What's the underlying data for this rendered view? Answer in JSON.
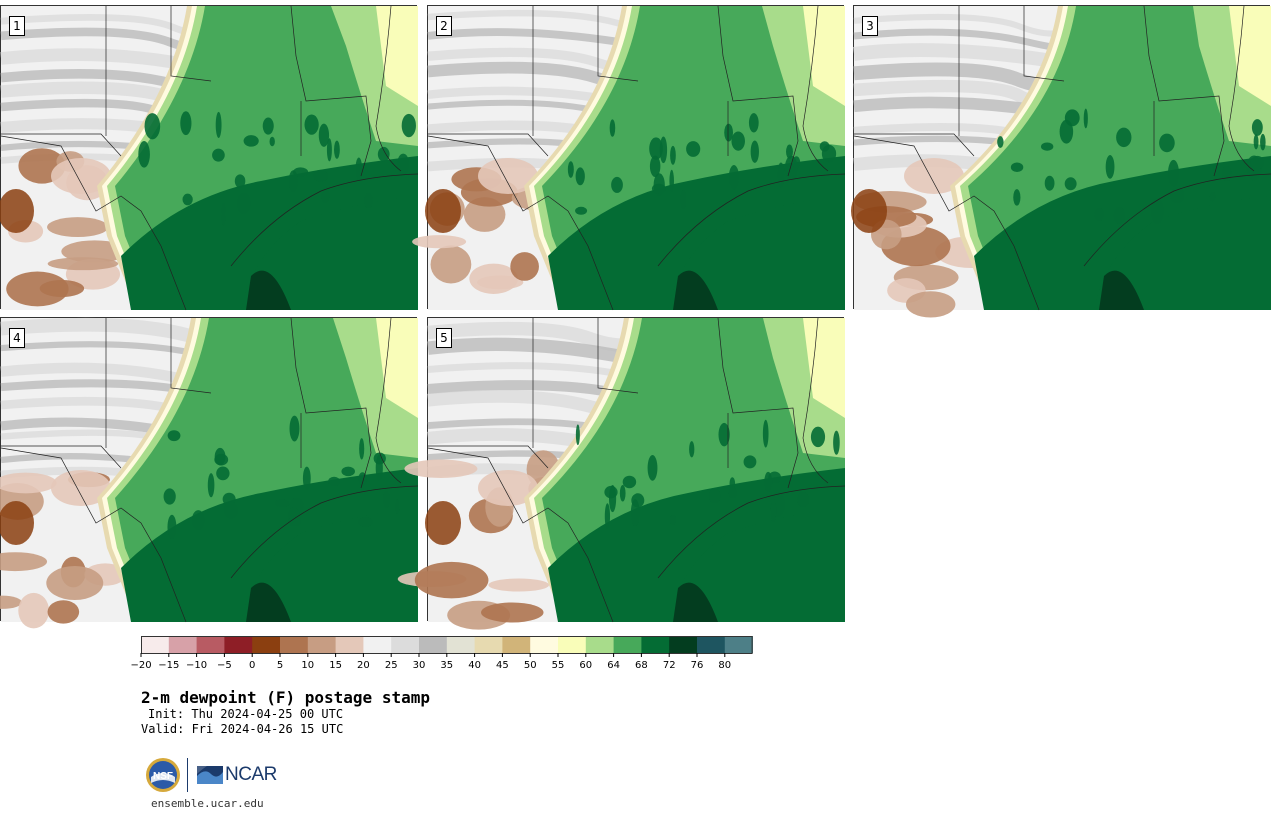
{
  "panels": [
    {
      "label": "1"
    },
    {
      "label": "2"
    },
    {
      "label": "3"
    },
    {
      "label": "4"
    },
    {
      "label": "5"
    }
  ],
  "colorbar": {
    "tick_labels": [
      "−20",
      "−15",
      "−10",
      "−5",
      "0",
      "5",
      "10",
      "15",
      "20",
      "25",
      "30",
      "35",
      "40",
      "45",
      "50",
      "55",
      "60",
      "64",
      "68",
      "72",
      "76",
      "80"
    ],
    "colors": [
      "#f7ebeb",
      "#d7a1a8",
      "#b85b63",
      "#8e1e26",
      "#8b3f10",
      "#ae7450",
      "#c79d83",
      "#e4c8b9",
      "#f1f1f1",
      "#dcdcdc",
      "#bbbbbb",
      "#e2e2d4",
      "#e7dab0",
      "#d1b479",
      "#fffbe0",
      "#f9fdb9",
      "#a8dc8b",
      "#47a95a",
      "#046c34",
      "#033d1f",
      "#1e5560",
      "#4d7f87"
    ]
  },
  "title": "2-m dewpoint (F) postage stamp",
  "init": "Init: Thu 2024-04-25 00 UTC",
  "valid": "Valid: Fri 2024-04-26 15 UTC",
  "logo": {
    "text": "NCAR",
    "nsf_text": "NSF"
  },
  "site": "ensemble.ucar.edu"
}
